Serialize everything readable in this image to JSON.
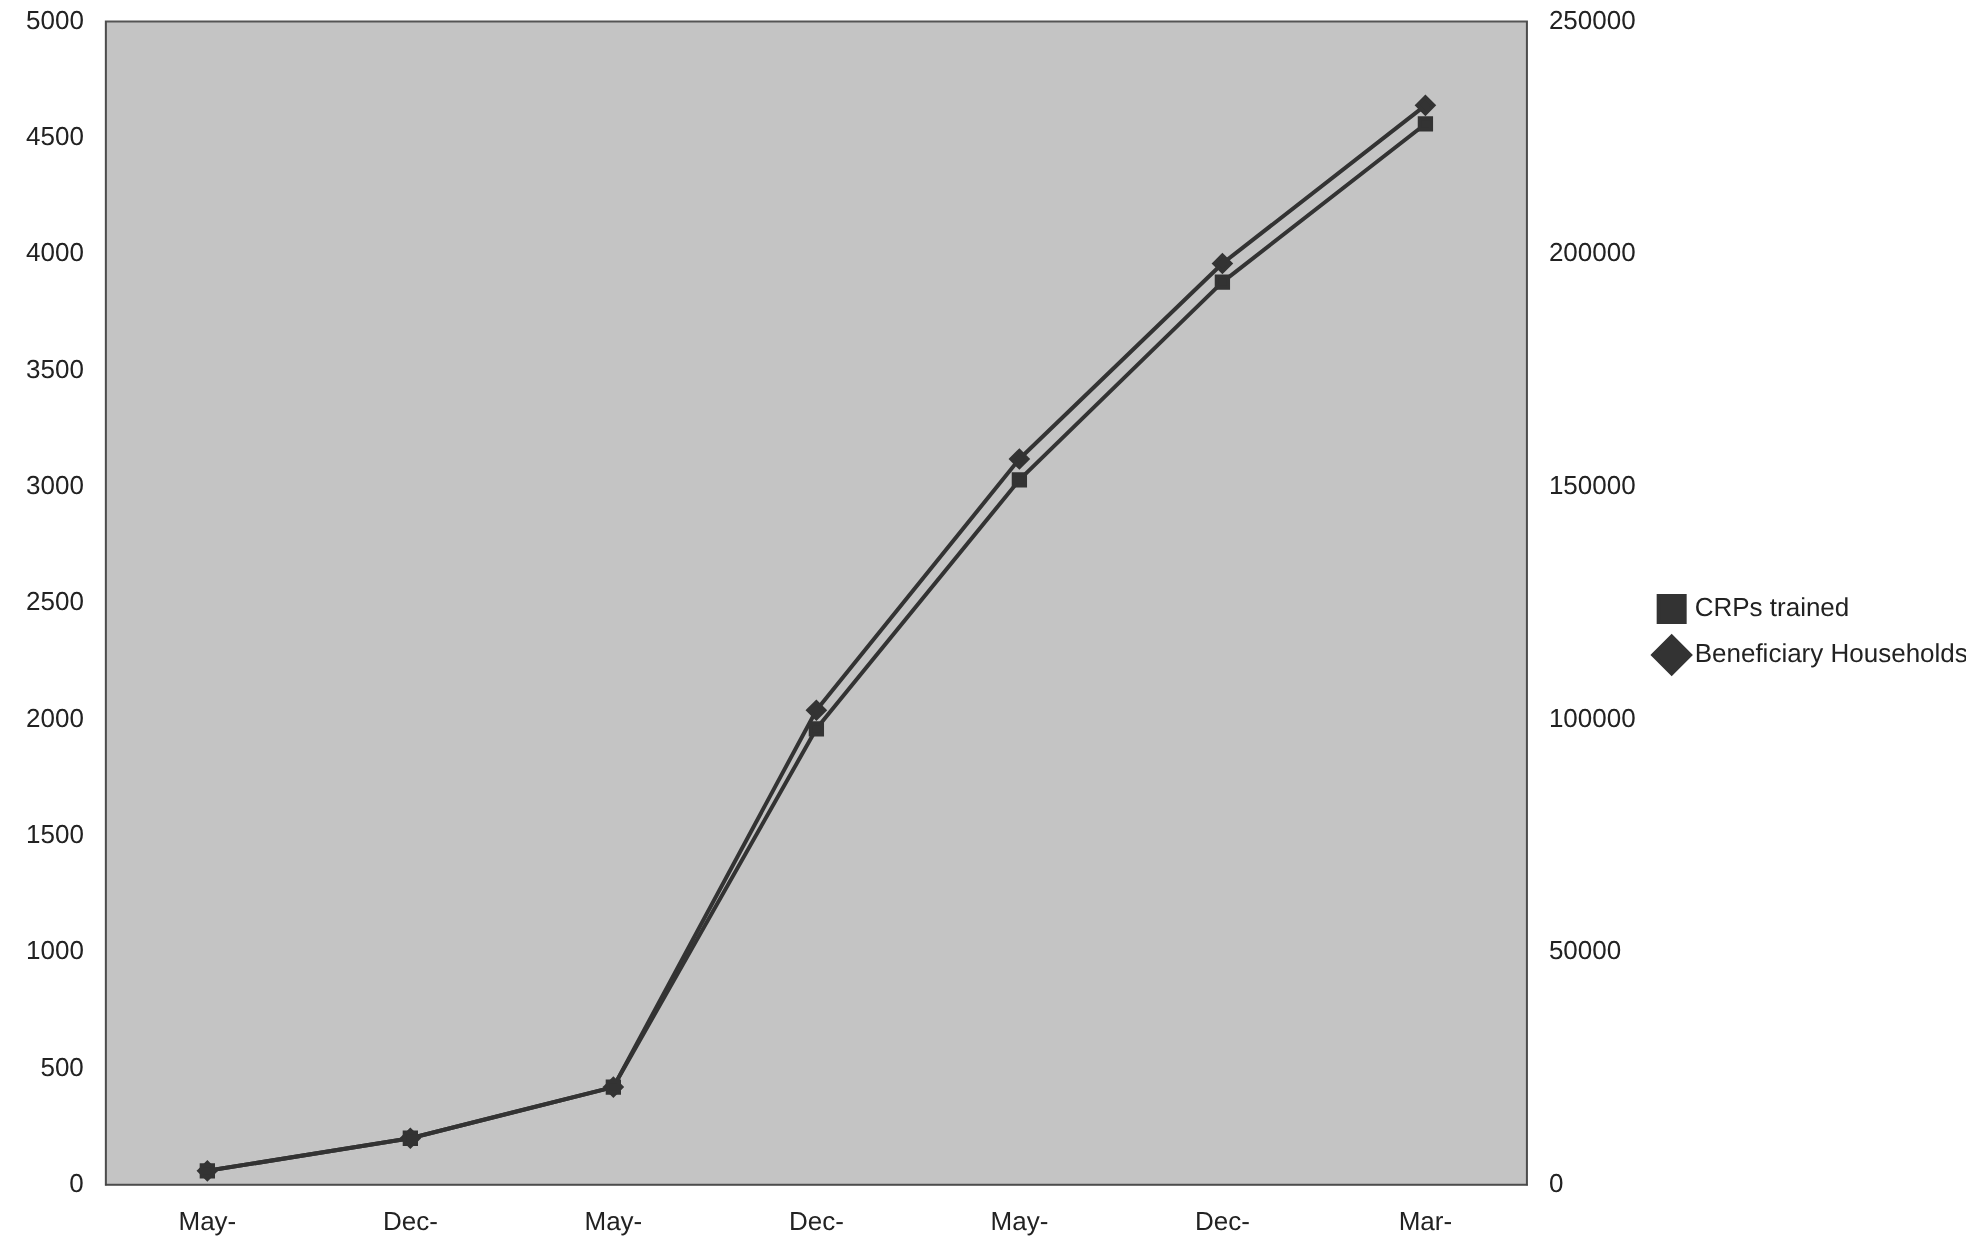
{
  "chart_data": {
    "type": "line",
    "categories": [
      "May-",
      "Dec-",
      "May-",
      "Dec-",
      "May-",
      "Dec-",
      "Mar-"
    ],
    "series": [
      {
        "name": "CRPs trained",
        "color": "#333333",
        "marker": "square",
        "values": [
          60,
          200,
          420,
          1960,
          3030,
          3880,
          4560
        ]
      },
      {
        "name": "Beneficiary Households",
        "color": "#333333",
        "marker": "diamond",
        "axis": "y2",
        "values": [
          3000,
          10000,
          21000,
          102000,
          156000,
          198000,
          232000
        ]
      }
    ],
    "ylim": [
      0,
      5000
    ],
    "yticks": [
      0,
      500,
      1000,
      1500,
      2000,
      2500,
      3000,
      3500,
      4000,
      4500,
      5000
    ],
    "y2lim": [
      0,
      250000
    ],
    "y2ticks": [
      0,
      50000,
      100000,
      150000,
      200000,
      250000
    ],
    "grid": false,
    "legend": "right",
    "line_style": "solid"
  }
}
